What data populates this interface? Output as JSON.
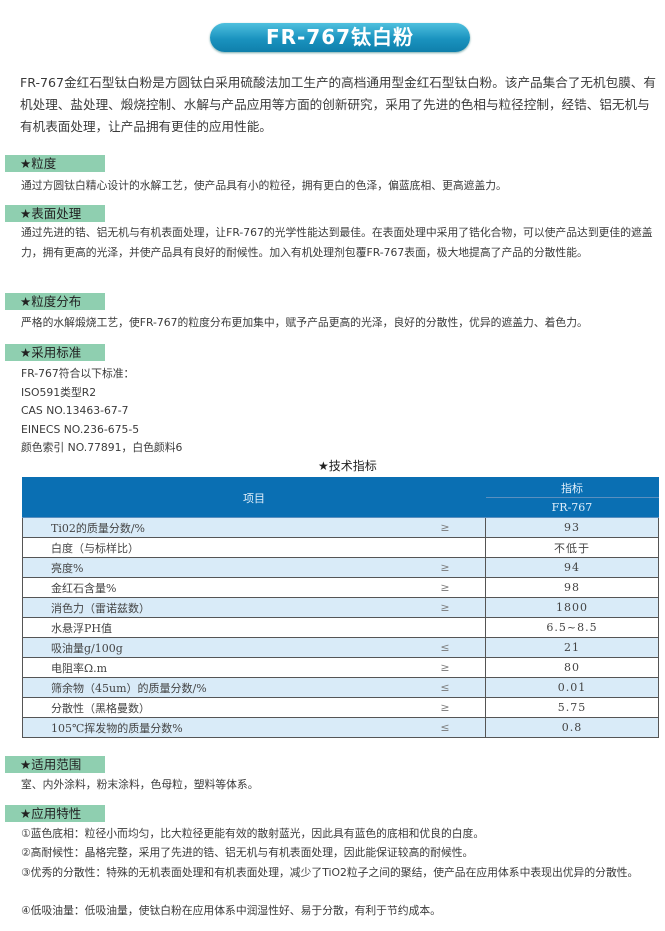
{
  "title": "FR-767钛白粉",
  "intro": "FR-767金红石型钛白粉是方圆钛白采用硫酸法加工生产的高档通用型金红石型钛白粉。该产品集合了无机包膜、有机处理、盐处理、煅烧控制、水解与产品应用等方面的创新研究，采用了先进的色相与粒径控制，经锆、铝无机与有机表面处理，让产品拥有更佳的应用性能。",
  "sections": {
    "particle_size": {
      "heading": "★粒度",
      "text": "通过方圆钛白精心设计的水解工艺，使产品具有小的粒径，拥有更白的色泽，偏蓝底相、更高遮盖力。"
    },
    "surface": {
      "heading": "★表面处理",
      "text": "通过先进的锆、铝无机与有机表面处理，让FR-767的光学性能达到最佳。在表面处理中采用了锆化合物，可以使产品达到更佳的遮盖力，拥有更高的光泽，并使产品具有良好的耐候性。加入有机处理剂包覆FR-767表面，极大地提高了产品的分散性能。"
    },
    "distribution": {
      "heading": "★粒度分布",
      "text": "严格的水解煅烧工艺，使FR-767的粒度分布更加集中，赋予产品更高的光泽，良好的分散性，优异的遮盖力、着色力。"
    },
    "standards": {
      "heading": "★采用标准",
      "lines": [
        "FR-767符合以下标准：",
        "ISO591类型R2",
        "CAS NO.13463-67-7",
        "EINECS NO.236-675-5",
        "颜色索引 NO.77891，白色颜料6"
      ]
    },
    "scope": {
      "heading": "★适用范围",
      "text": "室、内外涂料，粉末涂料，色母粒，塑料等体系。"
    },
    "features": {
      "heading": "★应用特性",
      "lines": [
        "①蓝色底相：粒径小而均匀，比大粒径更能有效的散射蓝光，因此具有蓝色的底相和优良的白度。",
        "②高耐候性：晶格完整，采用了先进的锆、铝无机与有机表面处理，因此能保证较高的耐候性。",
        "③优秀的分散性：特殊的无机表面处理和有机表面处理，减少了TiO2粒子之间的聚结，使产品在应用体系中表现出优异的分散性。",
        "④低吸油量：低吸油量，使钛白粉在应用体系中润湿性好、易于分散，有利于节约成本。"
      ]
    }
  },
  "spec_table": {
    "title": "★技术指标",
    "header_item": "项目",
    "header_index": "指标",
    "header_product": "FR-767",
    "rows": [
      {
        "item": "Ti02的质量分数/%",
        "op": "≥",
        "value": "93"
      },
      {
        "item": "白度（与标样比）",
        "op": "",
        "value": "不低于"
      },
      {
        "item": "亮度%",
        "op": "≥",
        "value": "94"
      },
      {
        "item": "金红石含量%",
        "op": "≥",
        "value": "98"
      },
      {
        "item": "消色力（雷诺兹数）",
        "op": "≥",
        "value": "1800"
      },
      {
        "item": "水悬浮PH值",
        "op": "",
        "value": "6.5~8.5"
      },
      {
        "item": "吸油量g/100g",
        "op": "≤",
        "value": "21"
      },
      {
        "item": "电阻率Ω.m",
        "op": "≥",
        "value": "80"
      },
      {
        "item": "筛余物（45um）的质量分数/%",
        "op": "≤",
        "value": "0.01"
      },
      {
        "item": "分散性（黑格曼数）",
        "op": "≥",
        "value": "5.75"
      },
      {
        "item": "105℃挥发物的质量分数%",
        "op": "≤",
        "value": "0.8"
      }
    ]
  },
  "colors": {
    "title_pill": "#1a93bf",
    "section_bar": "#8fcfb0",
    "table_header": "#0a6fb3",
    "row_alt": "#d9ebf8"
  }
}
